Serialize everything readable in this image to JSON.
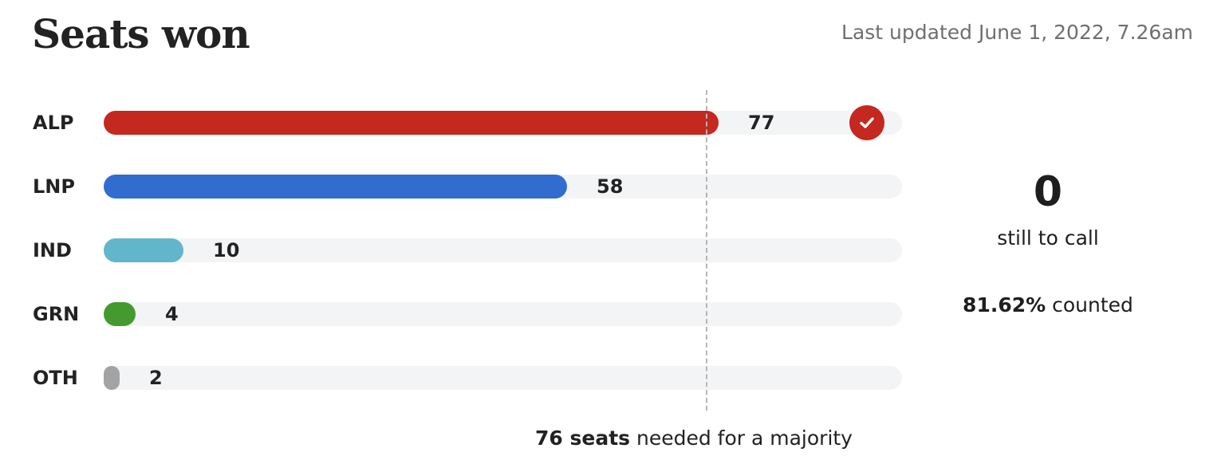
{
  "header": {
    "title": "Seats won",
    "last_updated": "Last updated June 1, 2022, 7.26am"
  },
  "summary": {
    "still_to_call_value": "0",
    "still_to_call_label": "still to call",
    "counted_value": "81.62%",
    "counted_label": "counted"
  },
  "majority": {
    "seats_text": "76 seats",
    "label_text": "needed for a majority"
  },
  "colors": {
    "ALP": "#c4281f",
    "LNP": "#316ccf",
    "IND": "#62b6cb",
    "GRN": "#459a2f",
    "OTH": "#a3a3a3",
    "check": "#c4281f",
    "track": "#f3f4f6"
  },
  "chart_data": {
    "type": "bar",
    "orientation": "horizontal",
    "categories": [
      "ALP",
      "LNP",
      "IND",
      "GRN",
      "OTH"
    ],
    "values": [
      77,
      58,
      10,
      4,
      2
    ],
    "winner": "ALP",
    "majority_threshold": 76,
    "xlim": [
      0,
      100
    ],
    "grid": false
  }
}
